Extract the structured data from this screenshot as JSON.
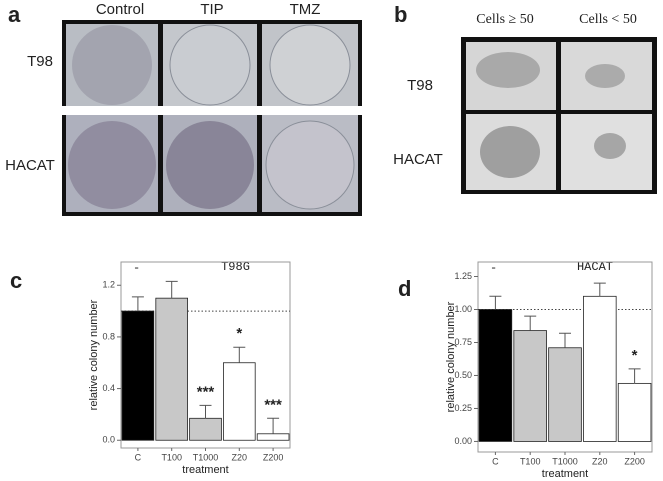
{
  "panels": {
    "a": {
      "label": "a",
      "columns": [
        "Control",
        "TIP",
        "TMZ"
      ],
      "rows": [
        "T98",
        "HACAT"
      ]
    },
    "b": {
      "label": "b",
      "columns": [
        "Cells ≥ 50",
        "Cells < 50"
      ],
      "rows": [
        "T98",
        "HACAT"
      ]
    }
  },
  "chart_data": [
    {
      "type": "bar",
      "label": "c",
      "title": "T98G",
      "subtitle": "-",
      "x_label": "treatment",
      "y_label": "relative colony number",
      "categories": [
        "C",
        "T100",
        "T1000",
        "Z20",
        "Z200"
      ],
      "values": [
        1.0,
        1.1,
        0.17,
        0.6,
        0.05
      ],
      "errors": [
        0.11,
        0.13,
        0.1,
        0.12,
        0.12
      ],
      "colors": [
        "#000000",
        "#c8c8c8",
        "#c8c8c8",
        "#ffffff",
        "#ffffff"
      ],
      "annotations": [
        {
          "category": 2,
          "text": "***"
        },
        {
          "category": 3,
          "text": "*"
        },
        {
          "category": 4,
          "text": "***"
        }
      ],
      "reference_line": 1.0,
      "ylim": [
        -0.06,
        1.38
      ],
      "yticks": [
        {
          "value": 0,
          "label": "0.0"
        },
        0.4,
        0.8,
        1.2
      ]
    },
    {
      "type": "bar",
      "label": "d",
      "title": "HACAT",
      "subtitle": "-",
      "x_label": "treatment",
      "y_label": "relative colony number",
      "categories": [
        "C",
        "T100",
        "T1000",
        "Z20",
        "Z200"
      ],
      "values": [
        1.0,
        0.84,
        0.71,
        1.1,
        0.44
      ],
      "errors": [
        0.1,
        0.11,
        0.11,
        0.1,
        0.11
      ],
      "colors": [
        "#000000",
        "#c8c8c8",
        "#c8c8c8",
        "#ffffff",
        "#ffffff"
      ],
      "annotations": [
        {
          "category": 4,
          "text": "*"
        }
      ],
      "reference_line": 1.0,
      "ylim": [
        -0.08,
        1.36
      ],
      "yticks": [
        {
          "value": 0,
          "label": "0.00"
        },
        0.25,
        {
          "value": 0.5,
          "label": "0.50"
        },
        0.75,
        {
          "value": 1,
          "label": "1.00"
        },
        1.25
      ]
    }
  ]
}
